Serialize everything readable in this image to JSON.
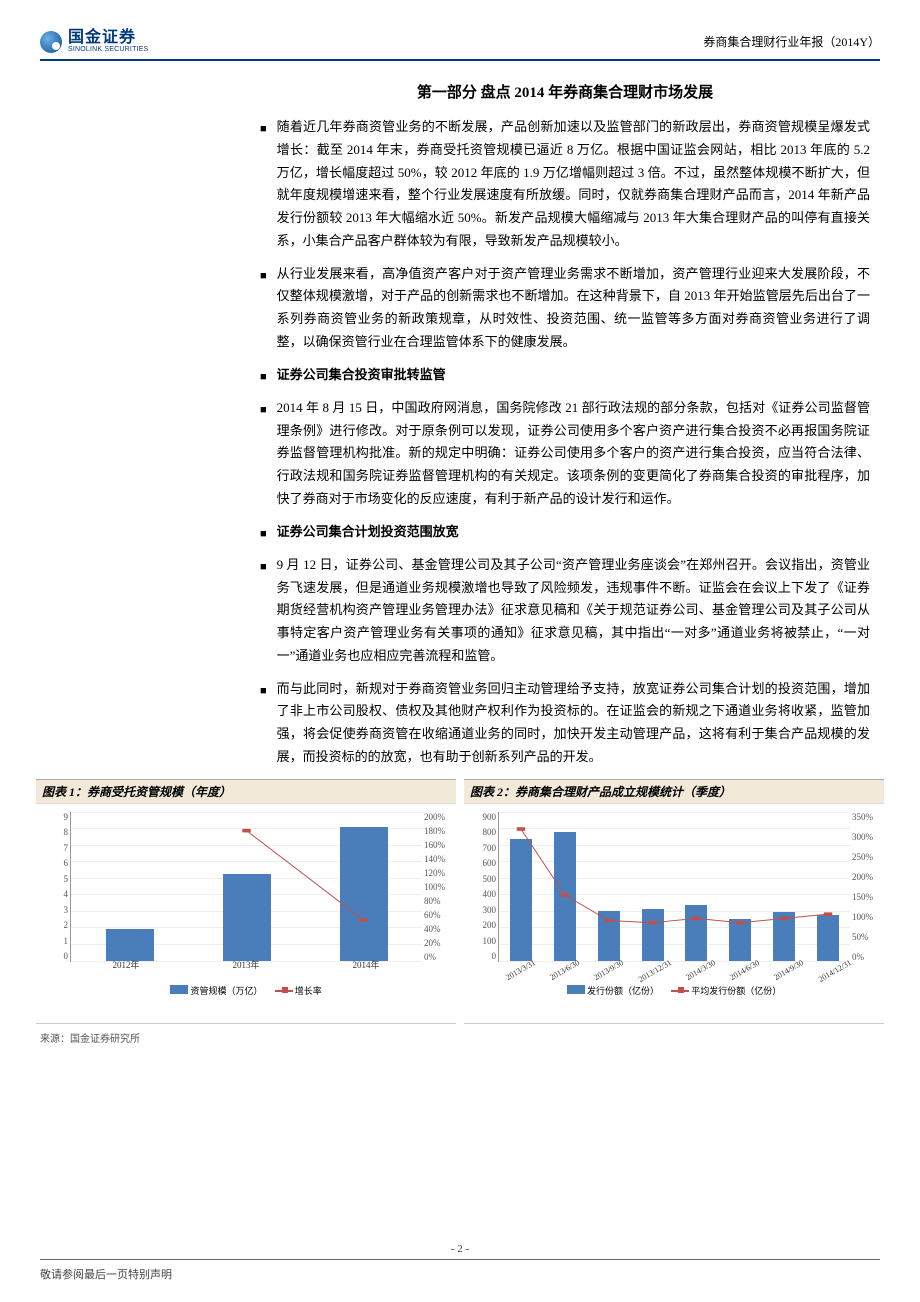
{
  "header": {
    "logo_cn": "国金证券",
    "logo_en": "SINOLINK SECURITIES",
    "right": "券商集合理财行业年报（2014Y）"
  },
  "section_title": "第一部分 盘点 2014 年券商集合理财市场发展",
  "bullets": [
    {
      "bold": false,
      "text": "随着近几年券商资管业务的不断发展，产品创新加速以及监管部门的新政层出，券商资管规模呈爆发式增长：截至 2014 年末，券商受托资管规模已逼近 8 万亿。根据中国证监会网站，相比 2013 年底的 5.2 万亿，增长幅度超过 50%，较 2012 年底的 1.9 万亿增幅则超过 3 倍。不过，虽然整体规模不断扩大，但就年度规模增速来看，整个行业发展速度有所放缓。同时，仅就券商集合理财产品而言，2014 年新产品发行份额较 2013 年大幅缩水近 50%。新发产品规模大幅缩减与 2013 年大集合理财产品的叫停有直接关系，小集合产品客户群体较为有限，导致新发产品规模较小。"
    },
    {
      "bold": false,
      "text": "从行业发展来看，高净值资产客户对于资产管理业务需求不断增加，资产管理行业迎来大发展阶段，不仅整体规模激增，对于产品的创新需求也不断增加。在这种背景下，自 2013 年开始监管层先后出台了一系列券商资管业务的新政策规章，从时效性、投资范围、统一监管等多方面对券商资管业务进行了调整，以确保资管行业在合理监管体系下的健康发展。"
    },
    {
      "bold": true,
      "text": "证券公司集合投资审批转监管"
    },
    {
      "bold": false,
      "text": "2014 年 8 月 15 日，中国政府网消息，国务院修改 21 部行政法规的部分条款，包括对《证券公司监督管理条例》进行修改。对于原条例可以发现，证券公司使用多个客户资产进行集合投资不必再报国务院证券监督管理机构批准。新的规定中明确：证券公司使用多个客户的资产进行集合投资，应当符合法律、行政法规和国务院证券监督管理机构的有关规定。该项条例的变更简化了券商集合投资的审批程序，加快了券商对于市场变化的反应速度，有利于新产品的设计发行和运作。"
    },
    {
      "bold": true,
      "text": "证券公司集合计划投资范围放宽"
    },
    {
      "bold": false,
      "text": "9 月 12 日，证券公司、基金管理公司及其子公司“资产管理业务座谈会”在郑州召开。会议指出，资管业务飞速发展，但是通道业务规模激增也导致了风险频发，违规事件不断。证监会在会议上下发了《证券期货经营机构资产管理业务管理办法》征求意见稿和《关于规范证券公司、基金管理公司及其子公司从事特定客户资产管理业务有关事项的通知》征求意见稿，其中指出“一对多”通道业务将被禁止，“一对一”通道业务也应相应完善流程和监管。"
    },
    {
      "bold": false,
      "text": "而与此同时，新规对于券商资管业务回归主动管理给予支持，放宽证券公司集合计划的投资范围，增加了非上市公司股权、债权及其他财产权利作为投资标的。在证监会的新规之下通道业务将收紧，监管加强，将会促使券商资管在收缩通道业务的同时，加快开发主动管理产品，这将有利于集合产品规模的发展，而投资标的的放宽，也有助于创新系列产品的开发。"
    }
  ],
  "chart1": {
    "title": "图表 1：券商受托资管规模（年度）",
    "type": "bar+line",
    "categories": [
      "2012年",
      "2013年",
      "2014年"
    ],
    "bar_values": [
      1.9,
      5.2,
      8.0
    ],
    "line_values": [
      null,
      175,
      55
    ],
    "y_left": {
      "min": 0,
      "max": 9,
      "step": 1
    },
    "y_right": {
      "min": 0,
      "max": 200,
      "step": 20,
      "suffix": "%"
    },
    "bar_color": "#4a7ebb",
    "line_color": "#c0504d",
    "legend_bar": "资管规模（万亿）",
    "legend_line": "增长率",
    "background": "#ffffff",
    "grid_color": "#eeeeee"
  },
  "chart2": {
    "title": "图表 2：券商集合理财产品成立规模统计（季度）",
    "type": "bar+line",
    "categories": [
      "2013/3/31",
      "2013/6/30",
      "2013/9/30",
      "2013/12/31",
      "2014/3/30",
      "2014/6/30",
      "2014/9/30",
      "2014/12/31"
    ],
    "bar_values": [
      730,
      770,
      295,
      310,
      335,
      250,
      290,
      275
    ],
    "line_values": [
      310,
      155,
      95,
      90,
      100,
      90,
      100,
      110
    ],
    "y_left": {
      "min": 0,
      "max": 900,
      "step": 100
    },
    "y_right": {
      "min": 0,
      "max": 350,
      "step": 50,
      "suffix": "%"
    },
    "bar_color": "#4a7ebb",
    "line_color": "#c0504d",
    "legend_bar": "发行份额（亿份）",
    "legend_line": "平均发行份额（亿份）",
    "background": "#ffffff",
    "grid_color": "#eeeeee"
  },
  "source": "来源：国金证券研究所",
  "footer": {
    "page": "- 2 -",
    "disclaimer": "敬请参阅最后一页特别声明"
  }
}
